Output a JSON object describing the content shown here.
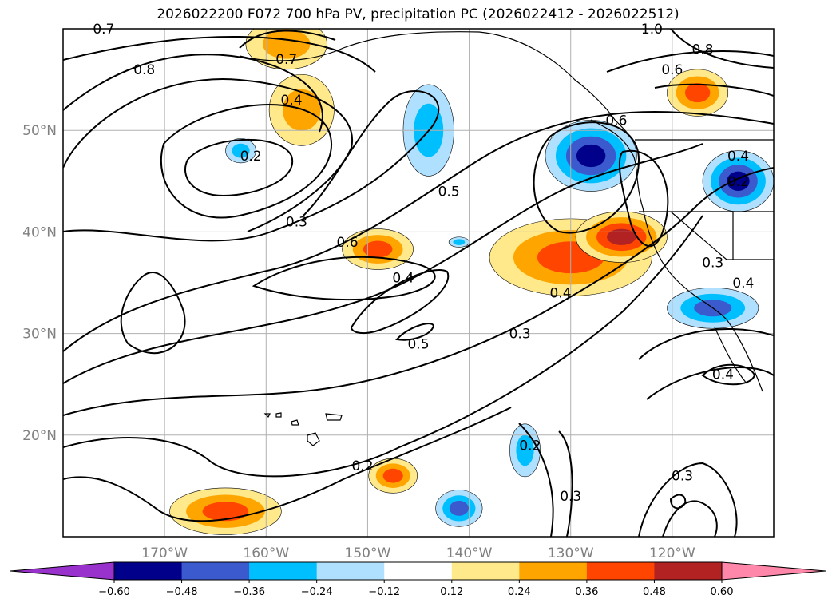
{
  "chart_data": {
    "type": "map",
    "title": "2026022200 F072 700 hPa PV, precipitation PC (2026022412 - 2026022512)",
    "lon_range": [
      -180,
      -110
    ],
    "lat_range": [
      10,
      60
    ],
    "lon_ticks": [
      {
        "value": -170,
        "label": "170°W"
      },
      {
        "value": -160,
        "label": "160°W"
      },
      {
        "value": -150,
        "label": "150°W"
      },
      {
        "value": -140,
        "label": "140°W"
      },
      {
        "value": -130,
        "label": "130°W"
      },
      {
        "value": -120,
        "label": "120°W"
      }
    ],
    "lat_ticks": [
      {
        "value": 20,
        "label": "20°N"
      },
      {
        "value": 30,
        "label": "30°N"
      },
      {
        "value": 40,
        "label": "40°N"
      },
      {
        "value": 50,
        "label": "50°N"
      }
    ],
    "grid": true,
    "colorbar": {
      "levels": [
        -0.6,
        -0.48,
        -0.36,
        -0.24,
        -0.12,
        0.12,
        0.24,
        0.36,
        0.48,
        0.6
      ],
      "tick_labels": [
        "−0.60",
        "−0.48",
        "−0.36",
        "−0.24",
        "−0.12",
        "0.12",
        "0.24",
        "0.36",
        "0.48",
        "0.60"
      ],
      "colors": [
        "#9932cc",
        "#00008b",
        "#3a5acd",
        "#00bfff",
        "#b0e0ff",
        "#ffffff",
        "#ffe98a",
        "#ffa500",
        "#ff4500",
        "#b22222",
        "#ff88aa"
      ],
      "extend": "both"
    },
    "pv_contour_labels": [
      {
        "text": "0.7",
        "lon": -176,
        "lat": 60
      },
      {
        "text": "0.8",
        "lon": -172,
        "lat": 56
      },
      {
        "text": "0.7",
        "lon": -158,
        "lat": 57
      },
      {
        "text": "0.4",
        "lon": -157.5,
        "lat": 53
      },
      {
        "text": "0.2",
        "lon": -161.5,
        "lat": 47.5
      },
      {
        "text": "0.3",
        "lon": -157,
        "lat": 41
      },
      {
        "text": "0.6",
        "lon": -152,
        "lat": 39
      },
      {
        "text": "0.5",
        "lon": -142,
        "lat": 44
      },
      {
        "text": "0.4",
        "lon": -146.5,
        "lat": 35.5
      },
      {
        "text": "0.5",
        "lon": -145,
        "lat": 29
      },
      {
        "text": "0.4",
        "lon": -131,
        "lat": 34
      },
      {
        "text": "0.3",
        "lon": -135,
        "lat": 30
      },
      {
        "text": "0.6",
        "lon": -125.5,
        "lat": 51
      },
      {
        "text": "0.6",
        "lon": -120,
        "lat": 56
      },
      {
        "text": "0.8",
        "lon": -117,
        "lat": 58
      },
      {
        "text": "1.0",
        "lon": -122,
        "lat": 60
      },
      {
        "text": "0.4",
        "lon": -113.5,
        "lat": 47.5
      },
      {
        "text": "0.2",
        "lon": -113.5,
        "lat": 45
      },
      {
        "text": "0.3",
        "lon": -116,
        "lat": 37
      },
      {
        "text": "0.4",
        "lon": -113,
        "lat": 35
      },
      {
        "text": "0.4",
        "lon": -115,
        "lat": 26
      },
      {
        "text": "0.2",
        "lon": -150.5,
        "lat": 17
      },
      {
        "text": "0.2",
        "lon": -134,
        "lat": 19
      },
      {
        "text": "0.3",
        "lon": -130,
        "lat": 14
      },
      {
        "text": "0.3",
        "lon": -119,
        "lat": 16
      }
    ],
    "precip_blobs": [
      {
        "lon": -156.5,
        "lat": 52,
        "rx": 3.2,
        "ry": 3.5,
        "value": 0.3
      },
      {
        "lon": -158,
        "lat": 58.5,
        "rx": 4,
        "ry": 2.5,
        "value": 0.3
      },
      {
        "lon": -149,
        "lat": 38.3,
        "rx": 3.5,
        "ry": 2,
        "value": 0.4
      },
      {
        "lon": -147.5,
        "lat": 16,
        "rx": 2.4,
        "ry": 1.7,
        "value": 0.4
      },
      {
        "lon": -164,
        "lat": 12.5,
        "rx": 5.5,
        "ry": 2.3,
        "value": 0.4
      },
      {
        "lon": -130,
        "lat": 37.5,
        "rx": 8,
        "ry": 3.8,
        "value": 0.45
      },
      {
        "lon": -125,
        "lat": 39.5,
        "rx": 4.5,
        "ry": 2.5,
        "value": 0.5
      },
      {
        "lon": -117.5,
        "lat": 53.7,
        "rx": 3,
        "ry": 2.3,
        "value": 0.42
      },
      {
        "lon": -128,
        "lat": 47.5,
        "rx": 4.5,
        "ry": 3.5,
        "value": -0.55
      },
      {
        "lon": -113.5,
        "lat": 45,
        "rx": 3.5,
        "ry": 3,
        "value": -0.5
      },
      {
        "lon": -144,
        "lat": 50,
        "rx": 2.5,
        "ry": 4.5,
        "value": -0.35
      },
      {
        "lon": -116,
        "lat": 32.5,
        "rx": 4.5,
        "ry": 2,
        "value": -0.45
      },
      {
        "lon": -141,
        "lat": 12.8,
        "rx": 2.3,
        "ry": 1.8,
        "value": -0.4
      },
      {
        "lon": -134.5,
        "lat": 18.5,
        "rx": 1.5,
        "ry": 2.6,
        "value": -0.3
      },
      {
        "lon": -162.5,
        "lat": 48,
        "rx": 1.5,
        "ry": 1.2,
        "value": -0.3
      },
      {
        "lon": -141,
        "lat": 39,
        "rx": 1,
        "ry": 0.5,
        "value": -0.25
      }
    ]
  }
}
